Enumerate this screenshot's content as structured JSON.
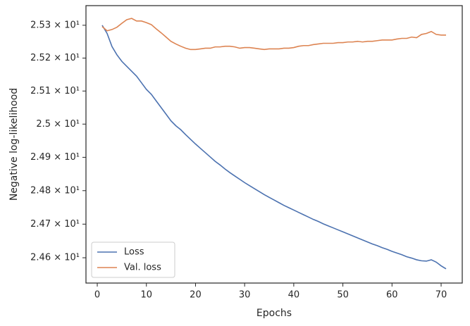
{
  "chart_data": {
    "type": "line",
    "x_label": "Epochs",
    "y_label": "Negative log-likelihood",
    "x": [
      1,
      2,
      3,
      4,
      5,
      6,
      7,
      8,
      9,
      10,
      11,
      12,
      13,
      14,
      15,
      16,
      17,
      18,
      19,
      20,
      21,
      22,
      23,
      24,
      25,
      26,
      27,
      28,
      29,
      30,
      31,
      32,
      33,
      34,
      35,
      36,
      37,
      38,
      39,
      40,
      41,
      42,
      43,
      44,
      45,
      46,
      47,
      48,
      49,
      50,
      51,
      52,
      53,
      54,
      55,
      56,
      57,
      58,
      59,
      60,
      61,
      62,
      63,
      64,
      65,
      66,
      67,
      68,
      69,
      70,
      71
    ],
    "series": [
      {
        "name": "Loss",
        "color": "#4c72b0",
        "values": [
          25.3,
          25.275,
          25.235,
          25.21,
          25.19,
          25.175,
          25.16,
          25.145,
          25.125,
          25.105,
          25.09,
          25.07,
          25.05,
          25.03,
          25.01,
          24.995,
          24.983,
          24.968,
          24.954,
          24.94,
          24.927,
          24.914,
          24.901,
          24.888,
          24.877,
          24.865,
          24.854,
          24.844,
          24.834,
          24.824,
          24.815,
          24.806,
          24.797,
          24.788,
          24.78,
          24.772,
          24.764,
          24.756,
          24.749,
          24.742,
          24.735,
          24.728,
          24.721,
          24.714,
          24.708,
          24.701,
          24.695,
          24.689,
          24.683,
          24.677,
          24.671,
          24.665,
          24.659,
          24.653,
          24.647,
          24.641,
          24.636,
          24.63,
          24.625,
          24.619,
          24.614,
          24.609,
          24.603,
          24.599,
          24.594,
          24.591,
          24.59,
          24.594,
          24.587,
          24.576,
          24.567
        ]
      },
      {
        "name": "Val. loss",
        "color": "#dd8452",
        "values": [
          25.296,
          25.283,
          25.287,
          25.294,
          25.306,
          25.317,
          25.321,
          25.313,
          25.313,
          25.308,
          25.302,
          25.289,
          25.277,
          25.264,
          25.251,
          25.243,
          25.236,
          25.23,
          25.226,
          25.226,
          25.228,
          25.23,
          25.23,
          25.234,
          25.234,
          25.236,
          25.236,
          25.234,
          25.23,
          25.232,
          25.232,
          25.23,
          25.228,
          25.226,
          25.228,
          25.228,
          25.228,
          25.23,
          25.23,
          25.232,
          25.236,
          25.238,
          25.238,
          25.241,
          25.243,
          25.245,
          25.245,
          25.245,
          25.247,
          25.247,
          25.249,
          25.249,
          25.251,
          25.249,
          25.251,
          25.251,
          25.253,
          25.255,
          25.255,
          25.255,
          25.258,
          25.26,
          25.26,
          25.264,
          25.262,
          25.272,
          25.275,
          25.281,
          25.272,
          25.27,
          25.27
        ]
      }
    ],
    "xlim": [
      -2.3,
      74.3
    ],
    "xticks": [
      0,
      10,
      20,
      30,
      40,
      50,
      60,
      70
    ],
    "ylim": [
      24.525,
      25.36
    ],
    "y_scale": "log",
    "yticks": [
      {
        "value": 25.3,
        "label": "2.53 × 10¹"
      },
      {
        "value": 25.2,
        "label": "2.52 × 10¹"
      },
      {
        "value": 25.1,
        "label": "2.51 × 10¹"
      },
      {
        "value": 25.0,
        "label": "2.5 × 10¹"
      },
      {
        "value": 24.9,
        "label": "2.49 × 10¹"
      },
      {
        "value": 24.8,
        "label": "2.48 × 10¹"
      },
      {
        "value": 24.7,
        "label": "2.47 × 10¹"
      },
      {
        "value": 24.6,
        "label": "2.46 × 10¹"
      }
    ],
    "grid": false,
    "legend_position": "lower left"
  }
}
